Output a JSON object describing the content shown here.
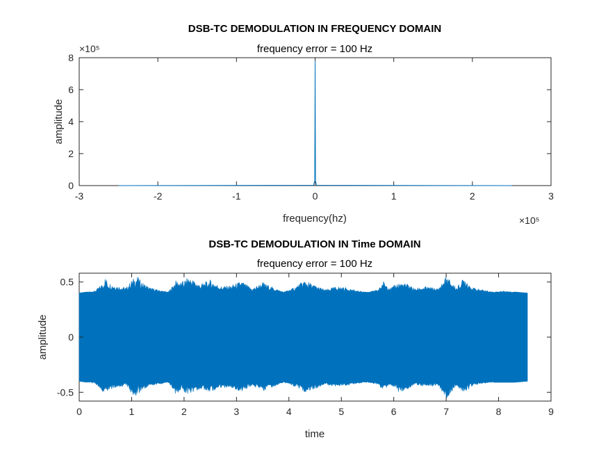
{
  "chart_data": [
    {
      "type": "line",
      "title": "DSB-TC DEMODULATION IN FREQUENCY DOMAIN",
      "subtitle": "frequency error = 100 Hz",
      "xlabel": "frequency(hz)",
      "ylabel": "amplitude",
      "xlim": [
        -3,
        3
      ],
      "ylim": [
        0,
        8
      ],
      "x_exponent_label": "×10⁵",
      "y_exponent_label": "×10⁵",
      "x_ticks": [
        "-3",
        "-2",
        "-1",
        "0",
        "1",
        "2",
        "3"
      ],
      "y_ticks": [
        "0",
        "2",
        "4",
        "6",
        "8"
      ],
      "line_color": "#0072BD",
      "series": [
        {
          "x": [
            -2.5,
            -0.02,
            -0.005,
            0,
            0.005,
            0.02,
            2.5
          ],
          "y": [
            0.0,
            0.02,
            0.3,
            7.8,
            0.3,
            0.02,
            0.0
          ]
        }
      ],
      "grid": false
    },
    {
      "type": "line",
      "title": "DSB-TC DEMODULATION IN Time DOMAIN",
      "subtitle": "frequency error = 100 Hz",
      "xlabel": "time",
      "ylabel": "amplitude",
      "xlim": [
        0,
        9
      ],
      "ylim": [
        -0.58,
        0.58
      ],
      "x_ticks": [
        "0",
        "1",
        "2",
        "3",
        "4",
        "5",
        "6",
        "7",
        "8",
        "9"
      ],
      "y_ticks": [
        "-0.5",
        "0",
        "0.5"
      ],
      "y_tick_values": [
        -0.5,
        0,
        0.5
      ],
      "fill_color": "#0072BD",
      "envelope": {
        "x": [
          0,
          0.3,
          0.45,
          0.5,
          0.55,
          0.7,
          0.9,
          1.0,
          1.1,
          1.2,
          1.35,
          1.5,
          1.7,
          1.85,
          1.95,
          2.1,
          2.3,
          2.5,
          2.7,
          2.9,
          3.1,
          3.3,
          3.5,
          3.7,
          3.9,
          4.1,
          4.3,
          4.5,
          4.7,
          4.9,
          5.1,
          5.3,
          5.5,
          5.7,
          5.8,
          5.95,
          6.1,
          6.3,
          6.4,
          6.6,
          6.85,
          7.0,
          7.2,
          7.35,
          7.5,
          7.7,
          7.9,
          8.1,
          8.3,
          8.55
        ],
        "upper": [
          0.4,
          0.42,
          0.49,
          0.55,
          0.5,
          0.47,
          0.45,
          0.52,
          0.56,
          0.5,
          0.45,
          0.43,
          0.41,
          0.52,
          0.5,
          0.55,
          0.48,
          0.52,
          0.46,
          0.47,
          0.51,
          0.44,
          0.5,
          0.45,
          0.41,
          0.45,
          0.52,
          0.47,
          0.43,
          0.46,
          0.45,
          0.42,
          0.41,
          0.43,
          0.51,
          0.45,
          0.5,
          0.48,
          0.44,
          0.46,
          0.44,
          0.56,
          0.45,
          0.55,
          0.45,
          0.43,
          0.41,
          0.42,
          0.41,
          0.4
        ],
        "lower": [
          -0.4,
          -0.42,
          -0.5,
          -0.52,
          -0.48,
          -0.46,
          -0.44,
          -0.52,
          -0.54,
          -0.49,
          -0.44,
          -0.43,
          -0.41,
          -0.53,
          -0.49,
          -0.52,
          -0.47,
          -0.5,
          -0.46,
          -0.46,
          -0.5,
          -0.44,
          -0.49,
          -0.45,
          -0.41,
          -0.45,
          -0.5,
          -0.47,
          -0.43,
          -0.45,
          -0.44,
          -0.42,
          -0.41,
          -0.43,
          -0.48,
          -0.44,
          -0.5,
          -0.47,
          -0.43,
          -0.45,
          -0.44,
          -0.56,
          -0.45,
          -0.52,
          -0.44,
          -0.42,
          -0.41,
          -0.41,
          -0.41,
          -0.4
        ]
      },
      "signal_end_time": 8.55,
      "grid": false
    }
  ]
}
